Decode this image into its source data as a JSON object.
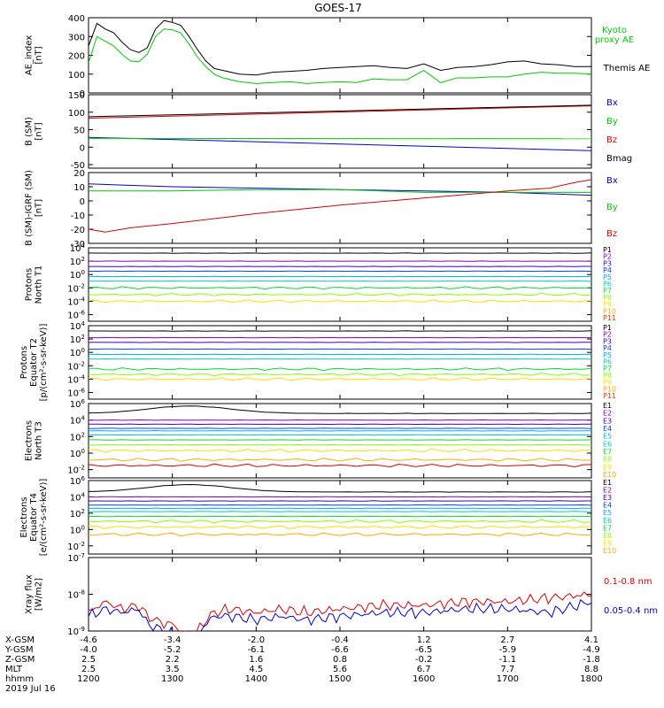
{
  "title": "GOES-17",
  "colors": {
    "black": "#000000",
    "red": "#dd0000",
    "green": "#00cc00",
    "blue": "#0000dd",
    "P": [
      "#000000",
      "#8800aa",
      "#3300cc",
      "#0044ff",
      "#00aaff",
      "#00ccbb",
      "#00dd33",
      "#88ff00",
      "#ffdd00",
      "#ffaa00",
      "#ff3300",
      "#cc0000"
    ],
    "E": [
      "#000000",
      "#8800aa",
      "#3300cc",
      "#0044ff",
      "#00aaff",
      "#00ccbb",
      "#00dd33",
      "#88ff00",
      "#ffdd00",
      "#ffaa00",
      "#dd0000",
      "#aa0000"
    ]
  },
  "chart_data": {
    "type": "line",
    "x_range": [
      "1200",
      "1800"
    ],
    "panels": [
      {
        "id": "ae",
        "ylabel": [
          "AE_index",
          "[nT]"
        ],
        "yscale": "linear",
        "ylim": [
          0,
          400
        ],
        "yticks": [
          "400",
          "300",
          "200",
          "100",
          "0"
        ],
        "series": [
          {
            "name": "Kyoto proxy AE",
            "color": "green",
            "legend_lines": [
              "Kyoto",
              "proxy AE"
            ],
            "x": [
              1200,
              1210,
              1220,
              1230,
              1240,
              1250,
              1260,
              1270,
              1280,
              1290,
              1300,
              1310,
              1320,
              1330,
              1340,
              1350,
              1360,
              1380,
              1400,
              1420,
              1440,
              1460,
              1480,
              1500,
              1520,
              1540,
              1560,
              1580,
              1600,
              1620,
              1640,
              1660,
              1680,
              1700,
              1720,
              1740,
              1760,
              1780,
              1800
            ],
            "y": [
              160,
              300,
              275,
              250,
              205,
              170,
              165,
              205,
              300,
              340,
              335,
              320,
              260,
              190,
              140,
              100,
              80,
              60,
              50,
              55,
              60,
              50,
              55,
              60,
              55,
              75,
              70,
              70,
              120,
              55,
              80,
              80,
              85,
              85,
              100,
              110,
              105,
              105,
              100
            ]
          },
          {
            "name": "Themis AE",
            "color": "black",
            "legend_lines": [
              "Themis AE"
            ],
            "x": [
              1200,
              1210,
              1220,
              1230,
              1240,
              1250,
              1260,
              1270,
              1280,
              1290,
              1300,
              1310,
              1320,
              1330,
              1340,
              1350,
              1360,
              1380,
              1400,
              1420,
              1440,
              1460,
              1480,
              1500,
              1520,
              1540,
              1560,
              1580,
              1600,
              1620,
              1640,
              1660,
              1680,
              1700,
              1720,
              1740,
              1760,
              1780,
              1800
            ],
            "y": [
              250,
              370,
              340,
              320,
              270,
              230,
              215,
              240,
              340,
              385,
              375,
              360,
              300,
              230,
              170,
              130,
              120,
              100,
              95,
              110,
              115,
              120,
              130,
              135,
              140,
              145,
              135,
              130,
              155,
              120,
              135,
              140,
              150,
              165,
              170,
              155,
              150,
              140,
              140
            ]
          }
        ]
      },
      {
        "id": "bsm",
        "ylabel": [
          "B (SM)",
          "[nT]"
        ],
        "yscale": "linear",
        "ylim": [
          -60,
          150
        ],
        "yticks": [
          "150",
          "100",
          "50",
          "0",
          "-50"
        ],
        "series": [
          {
            "name": "Bx",
            "color": "blue",
            "x": [
              1200,
              1800
            ],
            "y": [
              28,
              -10
            ]
          },
          {
            "name": "By",
            "color": "green",
            "x": [
              1200,
              1800
            ],
            "y": [
              25,
              24
            ]
          },
          {
            "name": "Bz",
            "color": "red",
            "x": [
              1200,
              1800
            ],
            "y": [
              83,
              118
            ]
          },
          {
            "name": "Bmag",
            "color": "black",
            "x": [
              1200,
              1800
            ],
            "y": [
              87,
              120
            ]
          }
        ]
      },
      {
        "id": "bsmigrf",
        "ylabel": [
          "B (SM)-IGRF (SM)",
          "[nT]"
        ],
        "yscale": "linear",
        "ylim": [
          -30,
          20
        ],
        "yticks": [
          "20",
          "10",
          "0",
          "-10",
          "-20",
          "-30"
        ],
        "series": [
          {
            "name": "Bx",
            "color": "blue",
            "x": [
              1200,
              1300,
              1400,
              1500,
              1600,
              1700,
              1800
            ],
            "y": [
              12,
              10,
              9,
              8,
              7,
              6,
              4
            ]
          },
          {
            "name": "By",
            "color": "green",
            "x": [
              1200,
              1300,
              1400,
              1500,
              1600,
              1700,
              1800
            ],
            "y": [
              7,
              7,
              8,
              8,
              6,
              6,
              6
            ]
          },
          {
            "name": "Bz",
            "color": "red",
            "x": [
              1200,
              1220,
              1250,
              1300,
              1400,
              1500,
              1600,
              1700,
              1750,
              1780,
              1800
            ],
            "y": [
              -20,
              -22,
              -19,
              -16,
              -9,
              -3,
              2,
              7,
              9,
              13,
              15
            ]
          }
        ]
      },
      {
        "id": "pn",
        "ylabel": [
          "Protons",
          "North T1"
        ],
        "yscale": "log",
        "ylim": [
          1e-07,
          10000.0
        ],
        "yticks": [
          "10^4",
          "10^2",
          "10^0",
          "10^-2",
          "10^-4",
          "10^-6"
        ],
        "legend": [
          "P1",
          "P2",
          "P3",
          "P4",
          "P5",
          "P6",
          "P7",
          "P8",
          "P9",
          "P10",
          "P11"
        ],
        "series_levels": [
          3.2,
          2.0,
          1.2,
          0.5,
          -0.3,
          -1.0,
          -2.0,
          -3.0,
          -4.0
        ],
        "x": [
          1200,
          1800
        ]
      },
      {
        "id": "pe",
        "ylabel": [
          "Protons",
          "Equator T2",
          "[p/(cm²-s-sr-keV)]"
        ],
        "yscale": "log",
        "ylim": [
          1e-07,
          10000.0
        ],
        "yticks": [
          "10^4",
          "10^2",
          "10^0",
          "10^-2",
          "10^-4",
          "10^-6"
        ],
        "legend": [
          "P1",
          "P2",
          "P3",
          "P4",
          "P5",
          "P6",
          "P7",
          "P8",
          "P9",
          "P10",
          "P11"
        ],
        "series_levels": [
          3.2,
          2.2,
          1.5,
          0.5,
          -0.3,
          -1.0,
          -2.5,
          -3.3,
          -4.0
        ],
        "x": [
          1200,
          1800
        ]
      },
      {
        "id": "en",
        "ylabel": [
          "Electrons",
          "North T3"
        ],
        "yscale": "log",
        "ylim": [
          0.001,
          1000000.0
        ],
        "yticks": [
          "10^6",
          "10^4",
          "10^2",
          "10^0",
          "10^-2"
        ],
        "legend": [
          "E1",
          "E2",
          "E3",
          "E4",
          "E5",
          "E6",
          "E7",
          "E8",
          "E9",
          "E10"
        ],
        "series_levels": [
          5.0,
          4.0,
          3.5,
          3.0,
          2.7,
          2.2,
          1.6,
          1.0,
          0.3,
          -0.8,
          -1.5
        ],
        "x": [
          1200,
          1800
        ]
      },
      {
        "id": "ee",
        "ylabel": [
          "Electrons",
          "Equator T4",
          "[e/(cm²-s-sr-keV)]"
        ],
        "yscale": "log",
        "ylim": [
          0.001,
          1000000.0
        ],
        "yticks": [
          "10^6",
          "10^4",
          "10^2",
          "10^0",
          "10^-2"
        ],
        "legend": [
          "E1",
          "E2",
          "E3",
          "E4",
          "E5",
          "E6",
          "E7",
          "E8",
          "E9",
          "E10"
        ],
        "series_levels": [
          4.8,
          4.0,
          3.5,
          3.0,
          2.6,
          2.2,
          1.6,
          1.0,
          0.3,
          -0.6
        ],
        "x": [
          1200,
          1800
        ]
      },
      {
        "id": "xray",
        "ylabel": [
          "Xray flux",
          "[W/m2]"
        ],
        "yscale": "log",
        "ylim": [
          1e-09,
          1e-07
        ],
        "yticks": [
          "10^-7",
          "10^-8",
          "10^-9"
        ],
        "series": [
          {
            "name": "0.1-0.8 nm",
            "color": "red",
            "x": [
              1200,
              1220,
              1240,
              1260,
              1270,
              1290,
              1300,
              1310,
              1320,
              1330,
              1340,
              1350,
              1370,
              1400,
              1430,
              1460,
              1500,
              1550,
              1600,
              1650,
              1700,
              1750,
              1800
            ],
            "y": [
              -8.5,
              -8.2,
              -8.4,
              -8.3,
              -8.6,
              -8.8,
              -8.8,
              -9.0,
              -9.1,
              -9.0,
              -8.7,
              -8.5,
              -8.4,
              -8.5,
              -8.4,
              -8.5,
              -8.4,
              -8.3,
              -8.3,
              -8.2,
              -8.2,
              -8.1,
              -8.0
            ]
          },
          {
            "name": "0.05-0.4 nm",
            "color": "blue",
            "x": [
              1200,
              1220,
              1240,
              1260,
              1270,
              1290,
              1300,
              1310,
              1320,
              1330,
              1340,
              1350,
              1370,
              1400,
              1430,
              1460,
              1500,
              1550,
              1600,
              1650,
              1700,
              1750,
              1800
            ],
            "y": [
              -8.6,
              -8.4,
              -8.5,
              -8.4,
              -8.8,
              -9.0,
              -9.1,
              -9.2,
              -9.3,
              -9.1,
              -8.8,
              -8.6,
              -8.6,
              -8.7,
              -8.6,
              -8.7,
              -8.6,
              -8.5,
              -8.5,
              -8.4,
              -8.4,
              -8.5,
              -8.2
            ]
          }
        ]
      }
    ],
    "legends": {
      "ae": [
        [
          "Kyoto",
          "proxy AE"
        ],
        [
          "Themis AE"
        ]
      ],
      "bsm": [
        "Bx",
        "By",
        "Bz",
        "Bmag"
      ],
      "bsmigrf": [
        "Bx",
        "By",
        "Bz"
      ],
      "xray": [
        "0.1-0.8 nm",
        "0.05-0.4 nm"
      ]
    },
    "position_table": {
      "row_labels": [
        "X-GSM",
        "Y-GSM",
        "Z-GSM",
        "MLT",
        "hhmm",
        "2019 Jul 16"
      ],
      "columns": [
        [
          "-4.6",
          "-4.0",
          "2.5",
          "2.5",
          "1200"
        ],
        [
          "-3.4",
          "-5.2",
          "2.2",
          "3.5",
          "1300"
        ],
        [
          "-2.0",
          "-6.1",
          "1.6",
          "4.5",
          "1400"
        ],
        [
          "-0.4",
          "-6.6",
          "0.8",
          "5.6",
          "1500"
        ],
        [
          "1.2",
          "-6.5",
          "-0.2",
          "6.7",
          "1600"
        ],
        [
          "2.7",
          "-5.9",
          "-1.1",
          "7.7",
          "1700"
        ],
        [
          "4.1",
          "-4.9",
          "-1.8",
          "8.8",
          "1800"
        ]
      ]
    }
  }
}
